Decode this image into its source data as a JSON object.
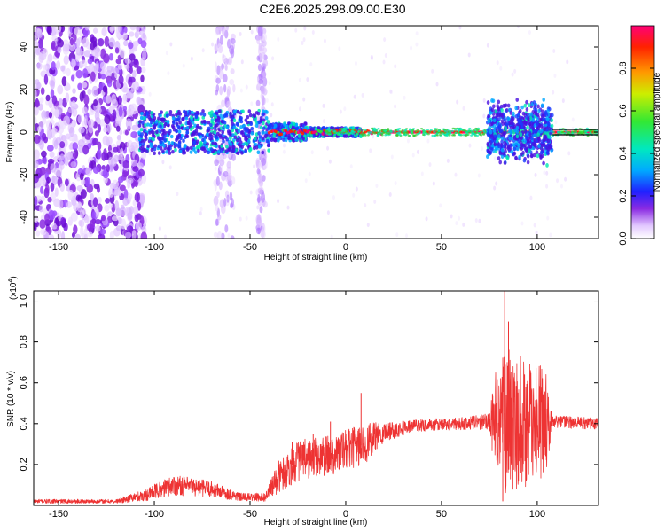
{
  "title": "C2E6.2025.298.09.00.E30",
  "chart_data": [
    {
      "type": "heatmap",
      "xlabel": "Height of straight line (km)",
      "ylabel": "Frequency (Hz)",
      "xlim": [
        -163,
        132
      ],
      "ylim": [
        -50,
        50
      ],
      "xticks": [
        -150,
        -100,
        -50,
        0,
        50,
        100
      ],
      "xtick_labels": [
        "-150",
        "-100",
        "-50",
        "0",
        "50",
        "100"
      ],
      "yticks": [
        -40,
        -20,
        0,
        20,
        40
      ],
      "ytick_labels": [
        "-40",
        "-20",
        "0",
        "20",
        "40"
      ],
      "colorbar": {
        "label": "Normalized spectral amplitude",
        "range": [
          0,
          1
        ],
        "ticks": [
          0.0,
          0.2,
          0.4,
          0.6,
          0.8
        ],
        "tick_labels": [
          "0.0",
          "0.2",
          "0.4",
          "0.6",
          "0.8"
        ]
      },
      "grid": false
    },
    {
      "type": "line",
      "xlabel": "Height of straight line (km)",
      "ylabel": "SNR (10 * v/v)",
      "y_multiplier": "(x10",
      "y_multiplier_exp": "4",
      "y_multiplier_close": ")",
      "xlim": [
        -163,
        132
      ],
      "ylim": [
        0,
        1.05
      ],
      "xticks": [
        -150,
        -100,
        -50,
        0,
        50,
        100
      ],
      "xtick_labels": [
        "-150",
        "-100",
        "-50",
        "0",
        "50",
        "100"
      ],
      "yticks": [
        0.2,
        0.4,
        0.6,
        0.8,
        1.0
      ],
      "ytick_labels": [
        "0.2",
        "0.4",
        "0.6",
        "0.8",
        "1.0"
      ],
      "color": "#ee3333",
      "grid": false,
      "envelope": [
        {
          "x": -163,
          "mean": 0.02,
          "amp": 0.01
        },
        {
          "x": -120,
          "mean": 0.02,
          "amp": 0.01
        },
        {
          "x": -105,
          "mean": 0.05,
          "amp": 0.03
        },
        {
          "x": -90,
          "mean": 0.1,
          "amp": 0.05
        },
        {
          "x": -70,
          "mean": 0.08,
          "amp": 0.04
        },
        {
          "x": -55,
          "mean": 0.04,
          "amp": 0.02
        },
        {
          "x": -42,
          "mean": 0.04,
          "amp": 0.02
        },
        {
          "x": -35,
          "mean": 0.14,
          "amp": 0.08
        },
        {
          "x": -25,
          "mean": 0.22,
          "amp": 0.1
        },
        {
          "x": -10,
          "mean": 0.24,
          "amp": 0.1
        },
        {
          "x": 0,
          "mean": 0.27,
          "amp": 0.1
        },
        {
          "x": 10,
          "mean": 0.3,
          "amp": 0.1
        },
        {
          "x": 20,
          "mean": 0.36,
          "amp": 0.05
        },
        {
          "x": 35,
          "mean": 0.39,
          "amp": 0.03
        },
        {
          "x": 60,
          "mean": 0.4,
          "amp": 0.03
        },
        {
          "x": 75,
          "mean": 0.41,
          "amp": 0.04
        },
        {
          "x": 78,
          "mean": 0.4,
          "amp": 0.25
        },
        {
          "x": 85,
          "mean": 0.4,
          "amp": 0.38
        },
        {
          "x": 95,
          "mean": 0.4,
          "amp": 0.3
        },
        {
          "x": 104,
          "mean": 0.4,
          "amp": 0.28
        },
        {
          "x": 108,
          "mean": 0.41,
          "amp": 0.03
        },
        {
          "x": 132,
          "mean": 0.4,
          "amp": 0.03
        }
      ],
      "spikes": [
        {
          "x": 8,
          "y": 0.55
        },
        {
          "x": -8,
          "y": 0.41
        },
        {
          "x": -17,
          "y": 0.35
        },
        {
          "x": -28,
          "y": 0.31
        },
        {
          "x": 83,
          "y": 1.05
        },
        {
          "x": 85,
          "y": 0.9
        },
        {
          "x": 82,
          "y": 0.02
        }
      ]
    }
  ]
}
